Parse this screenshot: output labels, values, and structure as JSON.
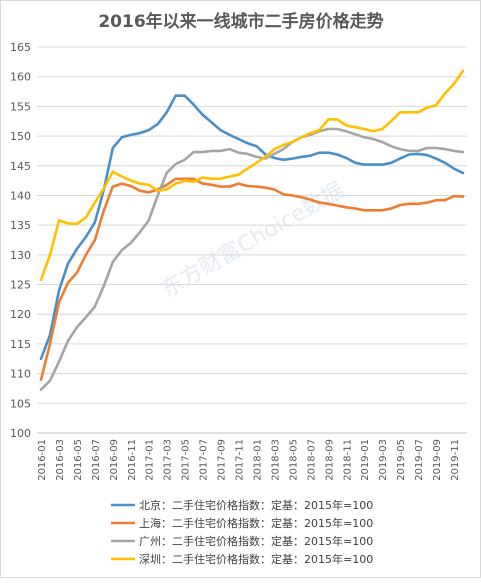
{
  "chart_data": {
    "type": "line",
    "title": "2016年以来一线城市二手房价格走势",
    "watermark": "东方财富Choice数据",
    "ylim": [
      100,
      165
    ],
    "yticks": [
      100,
      105,
      110,
      115,
      120,
      125,
      130,
      135,
      140,
      145,
      150,
      155,
      160,
      165
    ],
    "grid": true,
    "legend_position": "bottom",
    "x": [
      "2016-01",
      "2016-02",
      "2016-03",
      "2016-04",
      "2016-05",
      "2016-06",
      "2016-07",
      "2016-08",
      "2016-09",
      "2016-10",
      "2016-11",
      "2016-12",
      "2017-01",
      "2017-02",
      "2017-03",
      "2017-04",
      "2017-05",
      "2017-06",
      "2017-07",
      "2017-08",
      "2017-09",
      "2017-10",
      "2017-11",
      "2017-12",
      "2018-01",
      "2018-02",
      "2018-03",
      "2018-04",
      "2018-05",
      "2018-06",
      "2018-07",
      "2018-08",
      "2018-09",
      "2018-10",
      "2018-11",
      "2018-12",
      "2019-01",
      "2019-02",
      "2019-03",
      "2019-04",
      "2019-05",
      "2019-06",
      "2019-07",
      "2019-08",
      "2019-09",
      "2019-10",
      "2019-11",
      "2019-12"
    ],
    "xtick_labels": [
      "2016-01",
      "2016-03",
      "2016-05",
      "2016-07",
      "2016-09",
      "2016-11",
      "2017-01",
      "2017-03",
      "2017-05",
      "2017-07",
      "2017-09",
      "2017-11",
      "2018-01",
      "2018-03",
      "2018-05",
      "2018-07",
      "2018-09",
      "2018-11",
      "2019-01",
      "2019-03",
      "2019-05",
      "2019-07",
      "2019-09",
      "2019-11"
    ],
    "series": [
      {
        "name": "北京：二手住宅价格指数：定基：2015年=100",
        "color": "#4a8fc8",
        "values": [
          112.5,
          116.5,
          124,
          128.5,
          131,
          133,
          135.5,
          141,
          148,
          149.8,
          150.2,
          150.5,
          151,
          152,
          154,
          156.8,
          156.8,
          155.3,
          153.6,
          152.3,
          151,
          150.2,
          149.5,
          148.8,
          148.3,
          146.9,
          146.3,
          146,
          146.2,
          146.5,
          146.7,
          147.2,
          147.2,
          146.9,
          146.3,
          145.5,
          145.2,
          145.2,
          145.2,
          145.5,
          146.2,
          146.9,
          147,
          146.8,
          146.2,
          145.5,
          144.5,
          143.8
        ]
      },
      {
        "name": "上海：二手住宅价格指数：定基：2015年=100",
        "color": "#ed7d31",
        "values": [
          109,
          115,
          122,
          125.3,
          127,
          130,
          132.5,
          137.5,
          141.5,
          142,
          141.6,
          140.8,
          140.5,
          141,
          141.8,
          142.8,
          142.8,
          142.8,
          142,
          141.8,
          141.5,
          141.5,
          142,
          141.6,
          141.5,
          141.3,
          141,
          140.2,
          140,
          139.7,
          139.3,
          138.8,
          138.6,
          138.3,
          138,
          137.8,
          137.5,
          137.5,
          137.5,
          137.8,
          138.4,
          138.6,
          138.6,
          138.8,
          139.2,
          139.2,
          139.9,
          139.8
        ]
      },
      {
        "name": "广州：二手住宅价格指数：定基：2015年=100",
        "color": "#a5a5a5",
        "values": [
          107.3,
          108.8,
          112,
          115.5,
          117.8,
          119.5,
          121.3,
          124.8,
          128.8,
          130.8,
          132,
          133.8,
          135.8,
          140,
          143.8,
          145.3,
          146,
          147.3,
          147.3,
          147.5,
          147.5,
          147.8,
          147.2,
          147,
          146.5,
          146.2,
          147,
          147.8,
          149,
          149.8,
          150.2,
          150.8,
          151.2,
          151.2,
          150.8,
          150.3,
          149.8,
          149.5,
          149,
          148.3,
          147.8,
          147.5,
          147.5,
          148,
          148,
          147.8,
          147.5,
          147.3
        ]
      },
      {
        "name": "深圳：二手住宅价格指数：定基：2015年=100",
        "color": "#ffc000",
        "values": [
          125.8,
          130,
          135.8,
          135.3,
          135.2,
          136.3,
          138.8,
          141.2,
          144,
          143.2,
          142.5,
          142,
          141.8,
          140.8,
          141,
          142,
          142.5,
          142.3,
          143,
          142.8,
          142.8,
          143.2,
          143.5,
          144.5,
          145.5,
          146.5,
          147.8,
          148.5,
          149,
          149.8,
          150.5,
          151,
          152.8,
          152.8,
          151.8,
          151.5,
          151.2,
          150.8,
          151.2,
          152.5,
          154,
          154,
          154,
          154.8,
          155.2,
          157.2,
          158.8,
          161
        ]
      }
    ]
  }
}
